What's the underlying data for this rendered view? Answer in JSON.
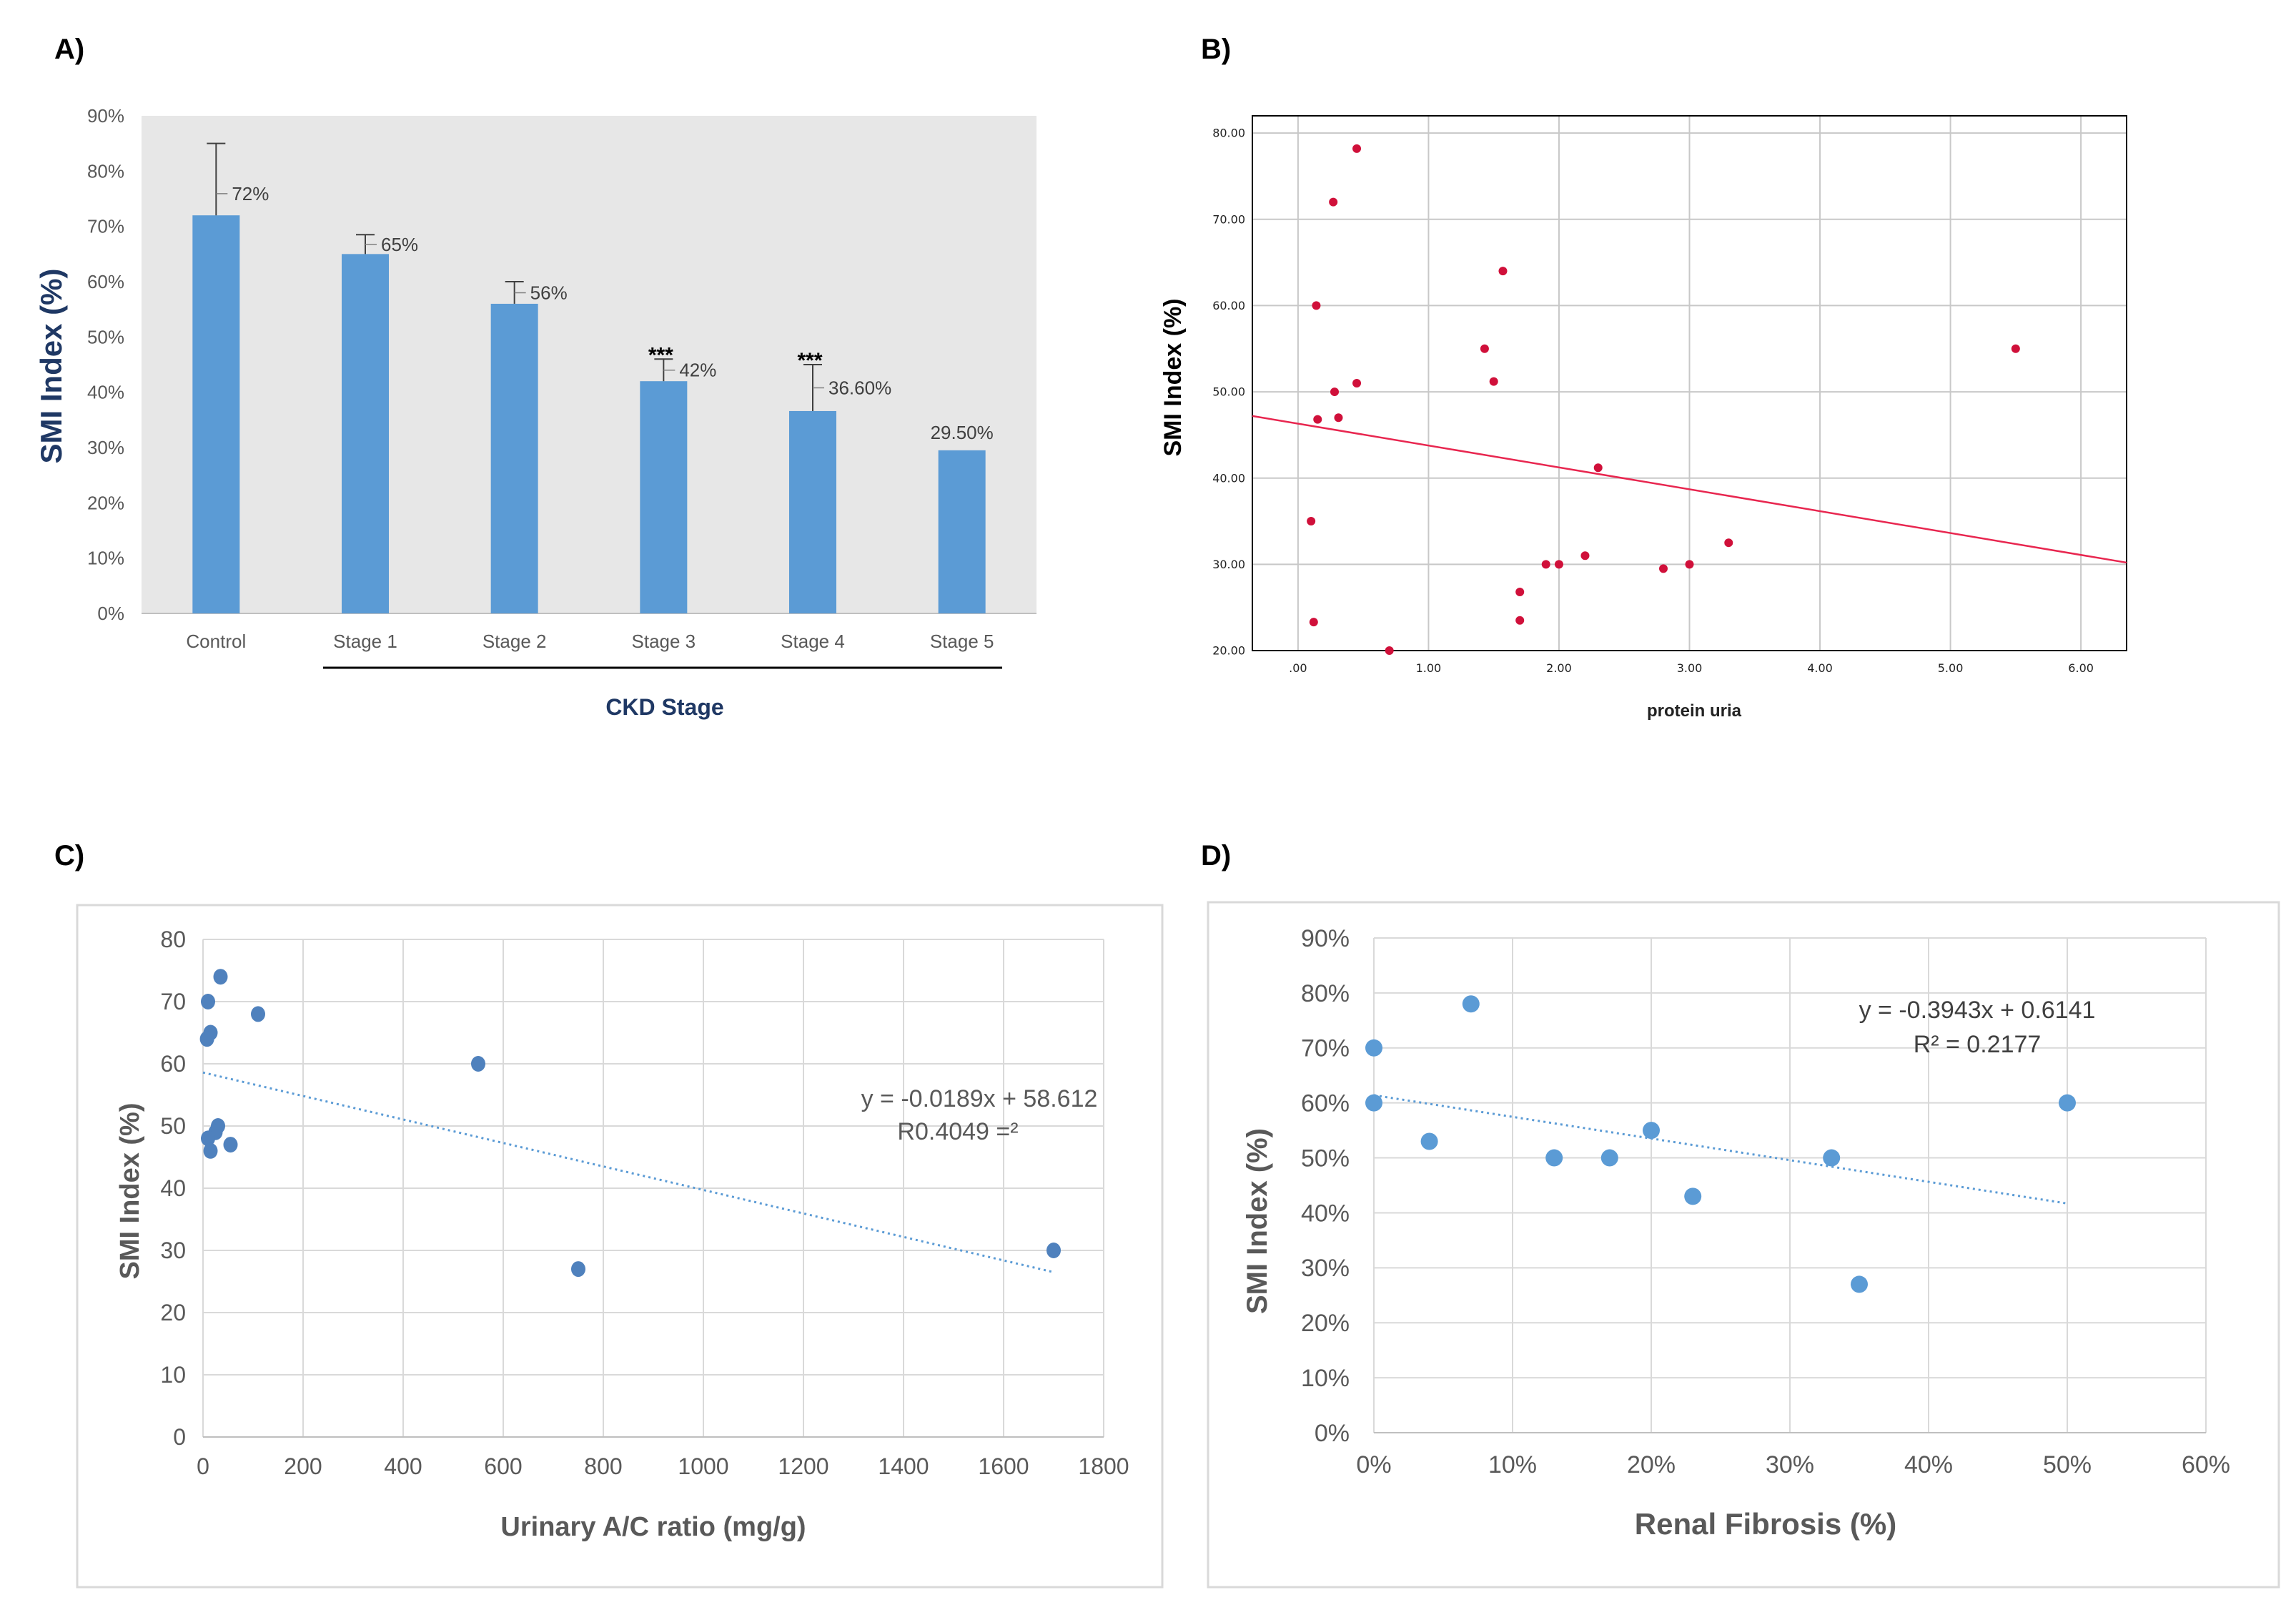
{
  "panels": {
    "a": "A)",
    "b": "B)",
    "c": "C)",
    "d": "D)"
  },
  "colors": {
    "bar": "#5b9bd5",
    "plot_bg": "#e7e7e7",
    "scatter_b": "#d0103a",
    "scatter_cd": "#5b9bd5",
    "axis_title_a": "#1f3864",
    "axis_title_cd": "#595959"
  },
  "chart_data": [
    {
      "id": "A",
      "type": "bar",
      "title": "",
      "xlabel": "CKD Stage",
      "ylabel": "SMI Index (%)",
      "categories": [
        "Control",
        "Stage 1",
        "Stage 2",
        "Stage 3",
        "Stage 4",
        "Stage 5"
      ],
      "values": [
        72,
        65,
        56,
        42,
        36.6,
        29.5
      ],
      "error_upper": [
        85,
        68.5,
        60,
        46,
        45,
        null
      ],
      "data_labels": [
        "72%",
        "65%",
        "56%",
        "42%",
        "36.60%",
        "29.50%"
      ],
      "significance": [
        "",
        "",
        "",
        "***",
        "***",
        ""
      ],
      "yticks": [
        "0%",
        "10%",
        "20%",
        "30%",
        "40%",
        "50%",
        "60%",
        "70%",
        "80%",
        "90%"
      ],
      "ylim": [
        0,
        90
      ],
      "grid": false
    },
    {
      "id": "B",
      "type": "scatter",
      "title": "",
      "xlabel": "protein uria",
      "ylabel": "SMI Index (%)",
      "xlim": [
        -0.35,
        6.35
      ],
      "ylim": [
        20,
        82
      ],
      "xticks": [
        ".00",
        "1.00",
        "2.00",
        "3.00",
        "4.00",
        "5.00",
        "6.00"
      ],
      "yticks": [
        "20.00",
        "30.00",
        "40.00",
        "50.00",
        "60.00",
        "70.00",
        "80.00"
      ],
      "points": [
        [
          0.45,
          78.2
        ],
        [
          0.27,
          72.0
        ],
        [
          0.14,
          60.0
        ],
        [
          1.57,
          64.0
        ],
        [
          1.43,
          55.0
        ],
        [
          1.5,
          51.2
        ],
        [
          0.45,
          51.0
        ],
        [
          0.28,
          50.0
        ],
        [
          0.15,
          46.8
        ],
        [
          0.31,
          47.0
        ],
        [
          2.3,
          41.2
        ],
        [
          0.1,
          35.0
        ],
        [
          1.9,
          30.0
        ],
        [
          2.0,
          30.0
        ],
        [
          2.2,
          31.0
        ],
        [
          2.8,
          29.5
        ],
        [
          3.0,
          30.0
        ],
        [
          3.3,
          32.5
        ],
        [
          1.7,
          26.8
        ],
        [
          1.7,
          23.5
        ],
        [
          0.12,
          23.3
        ],
        [
          0.7,
          20.0
        ],
        [
          5.5,
          55.0
        ]
      ],
      "trendline": {
        "x": [
          -0.35,
          6.35
        ],
        "y": [
          47.2,
          30.2
        ]
      },
      "grid": true
    },
    {
      "id": "C",
      "type": "scatter",
      "title": "",
      "xlabel": "Urinary A/C ratio (mg/g)",
      "ylabel": "SMI Index (%)",
      "xlim": [
        0,
        1800
      ],
      "ylim": [
        0,
        80
      ],
      "xticks": [
        "0",
        "200",
        "400",
        "600",
        "800",
        "1000",
        "1200",
        "1400",
        "1600",
        "1800"
      ],
      "yticks": [
        "0",
        "10",
        "20",
        "30",
        "40",
        "50",
        "60",
        "70",
        "80"
      ],
      "points": [
        [
          35,
          74
        ],
        [
          10,
          70
        ],
        [
          110,
          68
        ],
        [
          15,
          65
        ],
        [
          8,
          64
        ],
        [
          550,
          60
        ],
        [
          30,
          50
        ],
        [
          25,
          49
        ],
        [
          10,
          48
        ],
        [
          55,
          47
        ],
        [
          15,
          46
        ],
        [
          750,
          27
        ],
        [
          1700,
          30
        ]
      ],
      "trendline": {
        "x": [
          0,
          1700
        ],
        "y": [
          58.6,
          26.5
        ]
      },
      "equation": "y = -0.0189x + 58.612",
      "r2": "R0.4049 =²",
      "grid": true
    },
    {
      "id": "D",
      "type": "scatter",
      "title": "",
      "xlabel": "Renal Fibrosis (%)",
      "ylabel": "SMI Index (%)",
      "xlim": [
        0,
        60
      ],
      "ylim": [
        0,
        90
      ],
      "xticks": [
        "0%",
        "10%",
        "20%",
        "30%",
        "40%",
        "50%",
        "60%"
      ],
      "yticks": [
        "0%",
        "10%",
        "20%",
        "30%",
        "40%",
        "50%",
        "60%",
        "70%",
        "80%",
        "90%"
      ],
      "points": [
        [
          7,
          78
        ],
        [
          0,
          70
        ],
        [
          0,
          60
        ],
        [
          4,
          53
        ],
        [
          13,
          50
        ],
        [
          17,
          50
        ],
        [
          20,
          55
        ],
        [
          23,
          43
        ],
        [
          33,
          50
        ],
        [
          35,
          27
        ],
        [
          50,
          60
        ]
      ],
      "trendline": {
        "x": [
          0,
          50
        ],
        "y": [
          61.4,
          41.7
        ]
      },
      "equation": "y = -0.3943x + 0.6141",
      "r2": "R² = 0.2177",
      "grid": true
    }
  ]
}
